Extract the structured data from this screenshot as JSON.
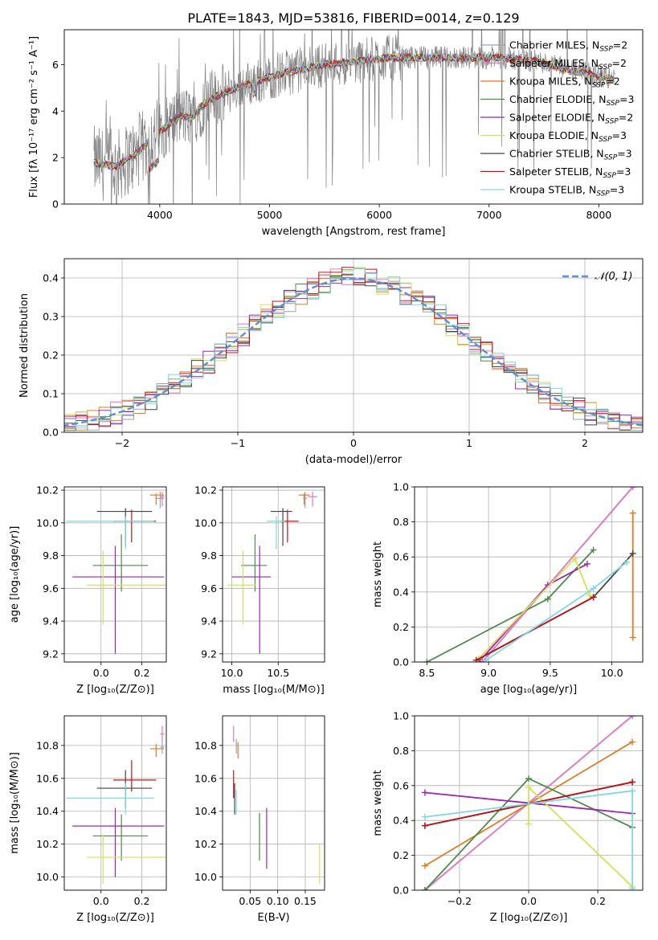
{
  "figure_title": "PLATE=1843, MJD=53816, FIBERID=0014, z=0.129",
  "models": [
    {
      "name": "Chabrier MILES",
      "nssp": "2",
      "color": "#8fa8b8"
    },
    {
      "name": "Salpeter MILES",
      "nssp": "2",
      "color": "#e377c2"
    },
    {
      "name": "Kroupa MILES",
      "nssp": "2",
      "color": "#e07b22"
    },
    {
      "name": "Chabrier ELODIE",
      "nssp": "3",
      "color": "#4f8a4f"
    },
    {
      "name": "Salpeter ELODIE",
      "nssp": "2",
      "color": "#9b27b0"
    },
    {
      "name": "Kroupa ELODIE",
      "nssp": "3",
      "color": "#d4e157"
    },
    {
      "name": "Chabrier STELIB",
      "nssp": "3",
      "color": "#444444"
    },
    {
      "name": "Salpeter STELIB",
      "nssp": "3",
      "color": "#c0141a"
    },
    {
      "name": "Kroupa STELIB",
      "nssp": "3",
      "color": "#80d8e0"
    }
  ],
  "chart_data": [
    {
      "id": "spectrum",
      "type": "line",
      "title": "PLATE=1843, MJD=53816, FIBERID=0014, z=0.129",
      "xlabel": "wavelength [Angstrom, rest frame]",
      "ylabel": "Flux [fλ 10⁻¹⁷ erg cm⁻² s⁻¹ A⁻¹]",
      "xlim": [
        3130,
        8400
      ],
      "ylim": [
        0,
        7.5
      ],
      "xticks": [
        4000,
        5000,
        6000,
        7000,
        8000
      ],
      "yticks": [
        0,
        2,
        4,
        6
      ],
      "grid": false,
      "legend": "right",
      "data_color": "#808080",
      "continuum": {
        "x": [
          3400,
          3500,
          3600,
          3700,
          3800,
          3900,
          4000,
          4100,
          4200,
          4300,
          4400,
          4500,
          4700,
          4900,
          5100,
          5300,
          5500,
          5700,
          5900,
          6100,
          6300,
          6500,
          6700,
          6900,
          7100,
          7300,
          7500,
          7700,
          7900,
          8100
        ],
        "y": [
          1.8,
          1.7,
          1.6,
          1.9,
          2.2,
          2.7,
          3.1,
          3.5,
          3.8,
          3.7,
          4.3,
          4.6,
          5.0,
          5.3,
          5.6,
          5.8,
          6.0,
          6.1,
          6.2,
          6.3,
          6.3,
          6.3,
          6.3,
          6.3,
          6.3,
          6.2,
          6.1,
          5.8,
          5.6,
          5.4
        ]
      }
    },
    {
      "id": "residuals",
      "type": "line",
      "xlabel": "(data-model)/error",
      "ylabel": "Normed distribution",
      "xlim": [
        -2.5,
        2.5
      ],
      "ylim": [
        0,
        0.45
      ],
      "xticks": [
        -2,
        -1,
        0,
        1,
        2
      ],
      "yticks": [
        0.0,
        0.1,
        0.2,
        0.3,
        0.4
      ],
      "grid": true,
      "legend": "top-right",
      "reference_curve": {
        "label": "𝒩(0, 1)",
        "color": "#5b8fd6",
        "mean": 0,
        "sigma": 1
      },
      "bin_width": 0.1
    },
    {
      "id": "age_vs_Z",
      "type": "scatter",
      "xlabel": "Z [log₁₀(Z/Z⊙)]",
      "ylabel": "age  [log₁₀(age/yr)]",
      "xlim": [
        -0.18,
        0.32
      ],
      "ylim": [
        9.15,
        10.22
      ],
      "xticks": [
        0.0,
        0.2
      ],
      "yticks": [
        9.2,
        9.4,
        9.6,
        9.8,
        10.0,
        10.2
      ],
      "grid": true,
      "points": [
        {
          "m": 0,
          "x": 0.29,
          "y": 10.15,
          "ex": [
            0.27,
            0.31
          ],
          "ey": [
            10.09,
            10.19
          ]
        },
        {
          "m": 1,
          "x": 0.3,
          "y": 10.16,
          "ex": [
            0.29,
            0.31
          ],
          "ey": [
            10.1,
            10.19
          ]
        },
        {
          "m": 2,
          "x": 0.27,
          "y": 10.17,
          "ex": [
            0.24,
            0.31
          ],
          "ey": [
            10.11,
            10.18
          ]
        },
        {
          "m": 3,
          "x": 0.1,
          "y": 9.74,
          "ex": [
            -0.04,
            0.23
          ],
          "ey": [
            9.58,
            9.93
          ]
        },
        {
          "m": 4,
          "x": 0.07,
          "y": 9.67,
          "ex": [
            -0.14,
            0.31
          ],
          "ey": [
            9.2,
            9.86
          ]
        },
        {
          "m": 5,
          "x": 0.01,
          "y": 9.62,
          "ex": [
            -0.07,
            0.32
          ],
          "ey": [
            9.38,
            9.83
          ]
        },
        {
          "m": 6,
          "x": 0.12,
          "y": 10.07,
          "ex": [
            -0.02,
            0.25
          ],
          "ey": [
            9.86,
            10.09
          ]
        },
        {
          "m": 7,
          "x": 0.15,
          "y": 10.01,
          "ex": [
            0.06,
            0.27
          ],
          "ey": [
            9.88,
            10.08
          ]
        },
        {
          "m": 8,
          "x": 0.12,
          "y": 10.01,
          "ex": [
            -0.17,
            0.26
          ],
          "ey": [
            9.84,
            10.04
          ]
        }
      ]
    },
    {
      "id": "age_vs_mass",
      "type": "scatter",
      "xlabel": "mass [log₁₀(M/M⊙)]",
      "ylabel": "",
      "xlim": [
        9.9,
        11.0
      ],
      "ylim": [
        9.15,
        10.22
      ],
      "xticks": [
        10.0,
        10.5
      ],
      "yticks": [
        9.2,
        9.4,
        9.6,
        9.8,
        10.0,
        10.2
      ],
      "grid": true,
      "points": [
        {
          "m": 0,
          "x": 10.79,
          "y": 10.15,
          "ex": [
            10.77,
            10.81
          ],
          "ey": [
            10.09,
            10.19
          ]
        },
        {
          "m": 1,
          "x": 10.87,
          "y": 10.16,
          "ex": [
            10.82,
            10.92
          ],
          "ey": [
            10.1,
            10.19
          ]
        },
        {
          "m": 2,
          "x": 10.78,
          "y": 10.17,
          "ex": [
            10.72,
            10.84
          ],
          "ey": [
            10.11,
            10.18
          ]
        },
        {
          "m": 3,
          "x": 10.25,
          "y": 9.74,
          "ex": [
            10.1,
            10.38
          ],
          "ey": [
            9.58,
            9.93
          ]
        },
        {
          "m": 4,
          "x": 10.3,
          "y": 9.67,
          "ex": [
            10.0,
            10.42
          ],
          "ey": [
            9.2,
            9.86
          ]
        },
        {
          "m": 5,
          "x": 10.12,
          "y": 9.62,
          "ex": [
            9.95,
            10.26
          ],
          "ey": [
            9.38,
            9.83
          ]
        },
        {
          "m": 6,
          "x": 10.55,
          "y": 10.07,
          "ex": [
            10.42,
            10.65
          ],
          "ey": [
            9.86,
            10.09
          ]
        },
        {
          "m": 7,
          "x": 10.6,
          "y": 10.01,
          "ex": [
            10.52,
            10.72
          ],
          "ey": [
            9.88,
            10.08
          ]
        },
        {
          "m": 8,
          "x": 10.48,
          "y": 10.01,
          "ex": [
            10.38,
            10.57
          ],
          "ey": [
            9.84,
            10.04
          ]
        }
      ]
    },
    {
      "id": "massweight_vs_age",
      "type": "line",
      "xlabel": "age  [log₁₀(age/yr)]",
      "ylabel": "mass weight",
      "xlim": [
        8.4,
        10.25
      ],
      "ylim": [
        0,
        1.0
      ],
      "xticks": [
        8.5,
        9.0,
        9.5,
        10.0
      ],
      "yticks": [
        0.0,
        0.2,
        0.4,
        0.6,
        0.8,
        1.0
      ],
      "grid": true,
      "series": [
        {
          "m": 0,
          "x": [
            8.95,
            10.17
          ],
          "y": [
            0.0,
            1.0
          ]
        },
        {
          "m": 1,
          "x": [
            8.95,
            10.17
          ],
          "y": [
            0.0,
            1.0
          ]
        },
        {
          "m": 2,
          "x": [
            10.17,
            10.17
          ],
          "y": [
            0.14,
            0.85
          ]
        },
        {
          "m": 3,
          "x": [
            8.5,
            9.48,
            9.85
          ],
          "y": [
            0.0,
            0.36,
            0.64
          ]
        },
        {
          "m": 4,
          "x": [
            8.92,
            9.48,
            9.8
          ],
          "y": [
            0.0,
            0.44,
            0.56
          ]
        },
        {
          "m": 5,
          "x": [
            8.92,
            9.7,
            9.82
          ],
          "y": [
            0.02,
            0.59,
            0.38
          ]
        },
        {
          "m": 6,
          "x": [
            8.9,
            9.85,
            10.17
          ],
          "y": [
            0.01,
            0.37,
            0.62
          ]
        },
        {
          "m": 7,
          "x": [
            8.9,
            9.85
          ],
          "y": [
            0.01,
            0.37
          ]
        },
        {
          "m": 8,
          "x": [
            8.98,
            9.85,
            10.12
          ],
          "y": [
            0.01,
            0.42,
            0.57
          ]
        }
      ]
    },
    {
      "id": "mass_vs_Z",
      "type": "scatter",
      "xlabel": "Z [log₁₀(Z/Z⊙)]",
      "ylabel": "mass [log₁₀(M/M⊙)]",
      "xlim": [
        -0.18,
        0.32
      ],
      "ylim": [
        9.92,
        10.98
      ],
      "xticks": [
        0.0,
        0.2
      ],
      "yticks": [
        10.0,
        10.2,
        10.4,
        10.6,
        10.8
      ],
      "grid": true,
      "points": [
        {
          "m": 0,
          "x": 0.3,
          "y": 10.79,
          "ex": [
            0.29,
            0.31
          ],
          "ey": [
            10.75,
            10.82
          ]
        },
        {
          "m": 1,
          "x": 0.3,
          "y": 10.87,
          "ex": [
            0.29,
            0.31
          ],
          "ey": [
            10.82,
            10.92
          ]
        },
        {
          "m": 2,
          "x": 0.27,
          "y": 10.78,
          "ex": [
            0.24,
            0.31
          ],
          "ey": [
            10.73,
            10.81
          ]
        },
        {
          "m": 3,
          "x": 0.1,
          "y": 10.25,
          "ex": [
            -0.04,
            0.23
          ],
          "ey": [
            10.1,
            10.38
          ]
        },
        {
          "m": 4,
          "x": 0.07,
          "y": 10.31,
          "ex": [
            -0.14,
            0.31
          ],
          "ey": [
            10.0,
            10.42
          ]
        },
        {
          "m": 5,
          "x": 0.01,
          "y": 10.12,
          "ex": [
            -0.07,
            0.32
          ],
          "ey": [
            9.96,
            10.26
          ]
        },
        {
          "m": 6,
          "x": 0.12,
          "y": 10.54,
          "ex": [
            -0.02,
            0.25
          ],
          "ey": [
            10.42,
            10.65
          ]
        },
        {
          "m": 7,
          "x": 0.15,
          "y": 10.59,
          "ex": [
            0.06,
            0.27
          ],
          "ey": [
            10.52,
            10.71
          ]
        },
        {
          "m": 8,
          "x": 0.12,
          "y": 10.48,
          "ex": [
            -0.17,
            0.26
          ],
          "ey": [
            10.38,
            10.57
          ]
        }
      ]
    },
    {
      "id": "mass_vs_EBV",
      "type": "scatter",
      "xlabel": "E(B-V)",
      "ylabel": "",
      "xlim": [
        0.0,
        0.185
      ],
      "ylim": [
        9.92,
        10.98
      ],
      "xticks": [
        0.05,
        0.1,
        0.15
      ],
      "yticks": [
        10.0,
        10.2,
        10.4,
        10.6,
        10.8
      ],
      "grid": true,
      "points": [
        {
          "m": 0,
          "x": 0.025,
          "y": 10.79,
          "ey": [
            10.75,
            10.84
          ]
        },
        {
          "m": 1,
          "x": 0.02,
          "y": 10.87,
          "ey": [
            10.82,
            10.92
          ]
        },
        {
          "m": 2,
          "x": 0.028,
          "y": 10.77,
          "ey": [
            10.72,
            10.82
          ]
        },
        {
          "m": 3,
          "x": 0.067,
          "y": 10.25,
          "ey": [
            10.1,
            10.39
          ]
        },
        {
          "m": 4,
          "x": 0.08,
          "y": 10.31,
          "ey": [
            10.05,
            10.42
          ]
        },
        {
          "m": 5,
          "x": 0.176,
          "y": 10.08,
          "ey": [
            9.96,
            10.2
          ]
        },
        {
          "m": 6,
          "x": 0.022,
          "y": 10.48,
          "ey": [
            10.38,
            10.57
          ]
        },
        {
          "m": 7,
          "x": 0.02,
          "y": 10.57,
          "ey": [
            10.48,
            10.65
          ]
        },
        {
          "m": 8,
          "x": 0.025,
          "y": 10.46,
          "ey": [
            10.38,
            10.53
          ]
        }
      ]
    },
    {
      "id": "massweight_vs_Z",
      "type": "line",
      "xlabel": "Z [log₁₀(Z/Z⊙)]",
      "ylabel": "mass weight",
      "xlim": [
        -0.33,
        0.33
      ],
      "ylim": [
        0,
        1.0
      ],
      "xticks": [
        -0.2,
        0.0,
        0.2
      ],
      "yticks": [
        0.0,
        0.2,
        0.4,
        0.6,
        0.8,
        1.0
      ],
      "grid": true,
      "series": [
        {
          "m": 0,
          "x": [
            -0.3,
            0.3
          ],
          "y": [
            0.0,
            1.0
          ]
        },
        {
          "m": 1,
          "x": [
            -0.3,
            0.3
          ],
          "y": [
            0.0,
            1.0
          ]
        },
        {
          "m": 2,
          "x": [
            -0.3,
            0.3
          ],
          "y": [
            0.14,
            0.85
          ]
        },
        {
          "m": 3,
          "x": [
            -0.3,
            0.0,
            0.3
          ],
          "y": [
            0.0,
            0.64,
            0.36
          ]
        },
        {
          "m": 4,
          "x": [
            -0.3,
            0.3
          ],
          "y": [
            0.56,
            0.44
          ]
        },
        {
          "m": 5,
          "x": [
            0.0,
            0.0,
            0.3
          ],
          "y": [
            0.38,
            0.59,
            0.02
          ]
        },
        {
          "m": 6,
          "x": [
            -0.3,
            0.3
          ],
          "y": [
            0.37,
            0.62
          ]
        },
        {
          "m": 7,
          "x": [
            -0.3,
            0.3
          ],
          "y": [
            0.37,
            0.62
          ]
        },
        {
          "m": 8,
          "x": [
            -0.3,
            0.3,
            0.3
          ],
          "y": [
            0.42,
            0.57,
            0.01
          ]
        }
      ]
    }
  ]
}
